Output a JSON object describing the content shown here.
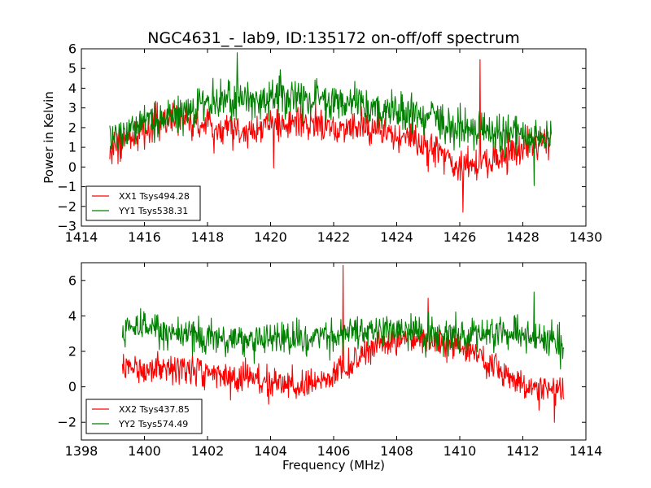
{
  "chart_data": [
    {
      "type": "line",
      "title": "NGC4631_-_lab9, ID:135172 on-off/off spectrum",
      "xlabel": "",
      "ylabel": "Power in Kelvin",
      "xlim": [
        1414,
        1430
      ],
      "ylim": [
        -3,
        6
      ],
      "x_ticks": [
        "1414",
        "1416",
        "1418",
        "1420",
        "1422",
        "1424",
        "1426",
        "1428",
        "1430"
      ],
      "y_ticks": [
        "−3",
        "−2",
        "−1",
        "0",
        "1",
        "2",
        "3",
        "4",
        "5",
        "6"
      ],
      "grid": false,
      "legend_position": "lower-left",
      "x_range": [
        1414.9,
        1428.9
      ],
      "series": [
        {
          "name": "XX1 Tsys494.28",
          "color": "#ff0000",
          "trend": [
            [
              1414.9,
              1.0
            ],
            [
              1416,
              1.9
            ],
            [
              1417,
              2.6
            ],
            [
              1418,
              2.1
            ],
            [
              1419,
              1.8
            ],
            [
              1420,
              2.1
            ],
            [
              1421,
              2.3
            ],
            [
              1422,
              2.0
            ],
            [
              1423,
              2.0
            ],
            [
              1424,
              1.6
            ],
            [
              1425,
              1.0
            ],
            [
              1426,
              0.0
            ],
            [
              1427,
              0.2
            ],
            [
              1428,
              1.0
            ],
            [
              1428.9,
              1.4
            ]
          ],
          "noise": 0.6,
          "spikes": [
            [
              1426.65,
              5.45
            ],
            [
              1426.1,
              -2.3
            ],
            [
              1420.1,
              -0.05
            ]
          ]
        },
        {
          "name": "YY1 Tsys538.31",
          "color": "#008000",
          "trend": [
            [
              1414.9,
              1.7
            ],
            [
              1416,
              2.2
            ],
            [
              1417,
              2.7
            ],
            [
              1418,
              3.3
            ],
            [
              1419,
              3.3
            ],
            [
              1420,
              3.4
            ],
            [
              1421,
              3.5
            ],
            [
              1422,
              3.5
            ],
            [
              1423,
              3.1
            ],
            [
              1424,
              2.8
            ],
            [
              1425,
              2.4
            ],
            [
              1426,
              2.1
            ],
            [
              1427,
              1.7
            ],
            [
              1428,
              1.6
            ],
            [
              1428.9,
              1.6
            ]
          ],
          "noise": 0.7,
          "spikes": [
            [
              1418.95,
              5.8
            ],
            [
              1428.35,
              -0.95
            ]
          ]
        }
      ]
    },
    {
      "type": "line",
      "title": "",
      "xlabel": "Frequency (MHz)",
      "ylabel": "",
      "xlim": [
        1398,
        1414
      ],
      "ylim": [
        -3,
        7
      ],
      "x_ticks": [
        "1398",
        "1400",
        "1402",
        "1404",
        "1406",
        "1408",
        "1410",
        "1412",
        "1414"
      ],
      "y_ticks": [
        "−2",
        "0",
        "2",
        "4",
        "6"
      ],
      "y_tick_values": [
        -2,
        0,
        2,
        4,
        6
      ],
      "grid": false,
      "legend_position": "lower-left",
      "x_range": [
        1399.3,
        1413.3
      ],
      "series": [
        {
          "name": "XX2 Tsys437.85",
          "color": "#ff0000",
          "trend": [
            [
              1399.3,
              1.5
            ],
            [
              1400,
              0.9
            ],
            [
              1401,
              1.1
            ],
            [
              1402,
              0.9
            ],
            [
              1403,
              0.5
            ],
            [
              1404,
              0.2
            ],
            [
              1405,
              0.0
            ],
            [
              1406,
              0.6
            ],
            [
              1407,
              1.9
            ],
            [
              1408,
              2.8
            ],
            [
              1409,
              2.6
            ],
            [
              1410,
              2.3
            ],
            [
              1411,
              1.2
            ],
            [
              1412,
              0.0
            ],
            [
              1413.3,
              -0.2
            ]
          ],
          "noise": 0.6,
          "spikes": [
            [
              1406.3,
              6.85
            ],
            [
              1409.0,
              5.0
            ],
            [
              1413.0,
              -2.0
            ]
          ]
        },
        {
          "name": "YY2 Tsys574.49",
          "color": "#008000",
          "trend": [
            [
              1399.3,
              3.2
            ],
            [
              1400,
              3.3
            ],
            [
              1401,
              3.1
            ],
            [
              1402,
              2.7
            ],
            [
              1403,
              2.6
            ],
            [
              1404,
              2.6
            ],
            [
              1405,
              2.8
            ],
            [
              1406,
              2.9
            ],
            [
              1407,
              3.1
            ],
            [
              1408,
              3.2
            ],
            [
              1409,
              3.1
            ],
            [
              1410,
              2.9
            ],
            [
              1411,
              2.9
            ],
            [
              1412,
              3.0
            ],
            [
              1413.3,
              2.3
            ]
          ],
          "noise": 0.7,
          "spikes": [
            [
              1412.35,
              5.35
            ],
            [
              1413.2,
              1.0
            ]
          ]
        }
      ]
    }
  ]
}
